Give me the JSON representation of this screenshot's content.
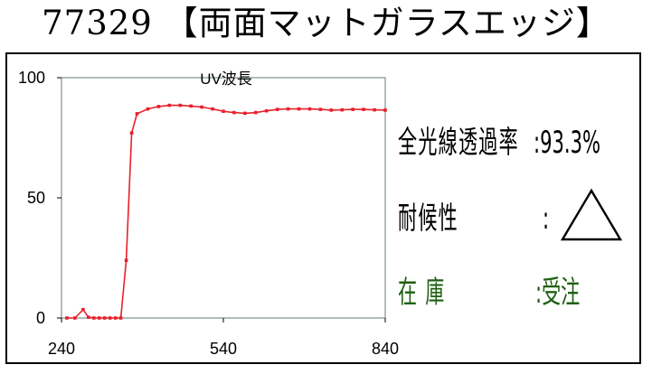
{
  "title": "77329 【両面マットガラスエッジ】",
  "chart_data": {
    "type": "line",
    "title": "UV波長",
    "xlabel": "",
    "ylabel": "",
    "xlim": [
      240,
      840
    ],
    "ylim": [
      0,
      100
    ],
    "x_ticks": [
      "240",
      "540",
      "840"
    ],
    "y_ticks": [
      "100",
      "50",
      "0"
    ],
    "grid": false,
    "legend": "none",
    "line_color": "#e8202a",
    "series": [
      {
        "x": [
          250,
          265,
          280,
          290,
          300,
          310,
          320,
          330,
          340,
          350,
          360,
          370,
          380,
          400,
          420,
          440,
          460,
          480,
          500,
          520,
          540,
          560,
          580,
          600,
          620,
          640,
          660,
          680,
          700,
          720,
          740,
          760,
          780,
          800,
          820,
          840
        ],
        "values": [
          0,
          0,
          3.5,
          0.3,
          0,
          0,
          0,
          0,
          0,
          0,
          24,
          77,
          85,
          87,
          88,
          88.5,
          88.5,
          88.2,
          87.8,
          87,
          86,
          85.5,
          85.2,
          85.5,
          86.2,
          86.8,
          87,
          87,
          87,
          86.8,
          86.5,
          86.6,
          86.8,
          86.8,
          86.6,
          86.5
        ]
      }
    ]
  },
  "info": {
    "transmittance_label": "全光線透過率",
    "transmittance_value": ":93.3%",
    "durability_label": "耐候性",
    "durability_colon": ":",
    "durability_symbol": "triangle",
    "stock_label": "在 庫",
    "stock_value": ":受注",
    "stock_color": "#1e5f12"
  }
}
